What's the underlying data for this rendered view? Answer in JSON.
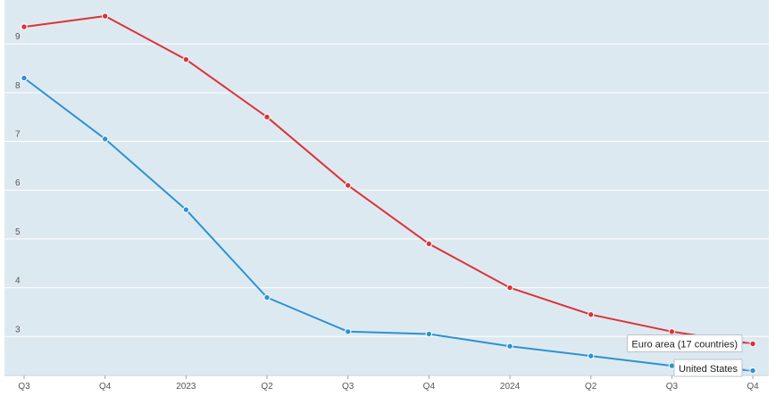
{
  "chart_data": {
    "type": "line",
    "categories": [
      "Q3",
      "Q4",
      "2023",
      "Q2",
      "Q3",
      "Q4",
      "2024",
      "Q2",
      "Q3",
      "Q4"
    ],
    "ylim": [
      2.2,
      9.9
    ],
    "yticks": [
      3,
      4,
      5,
      6,
      7,
      8,
      9
    ],
    "grid": true,
    "series": [
      {
        "name": "Euro area (17 countries)",
        "color": "#dc3239",
        "values": [
          9.35,
          9.57,
          8.68,
          7.5,
          6.1,
          4.9,
          4.0,
          3.45,
          3.1,
          2.85
        ]
      },
      {
        "name": "United States",
        "color": "#2b93d1",
        "values": [
          8.3,
          7.05,
          5.6,
          3.8,
          3.1,
          3.05,
          2.8,
          2.6,
          2.4,
          2.3
        ]
      }
    ]
  }
}
